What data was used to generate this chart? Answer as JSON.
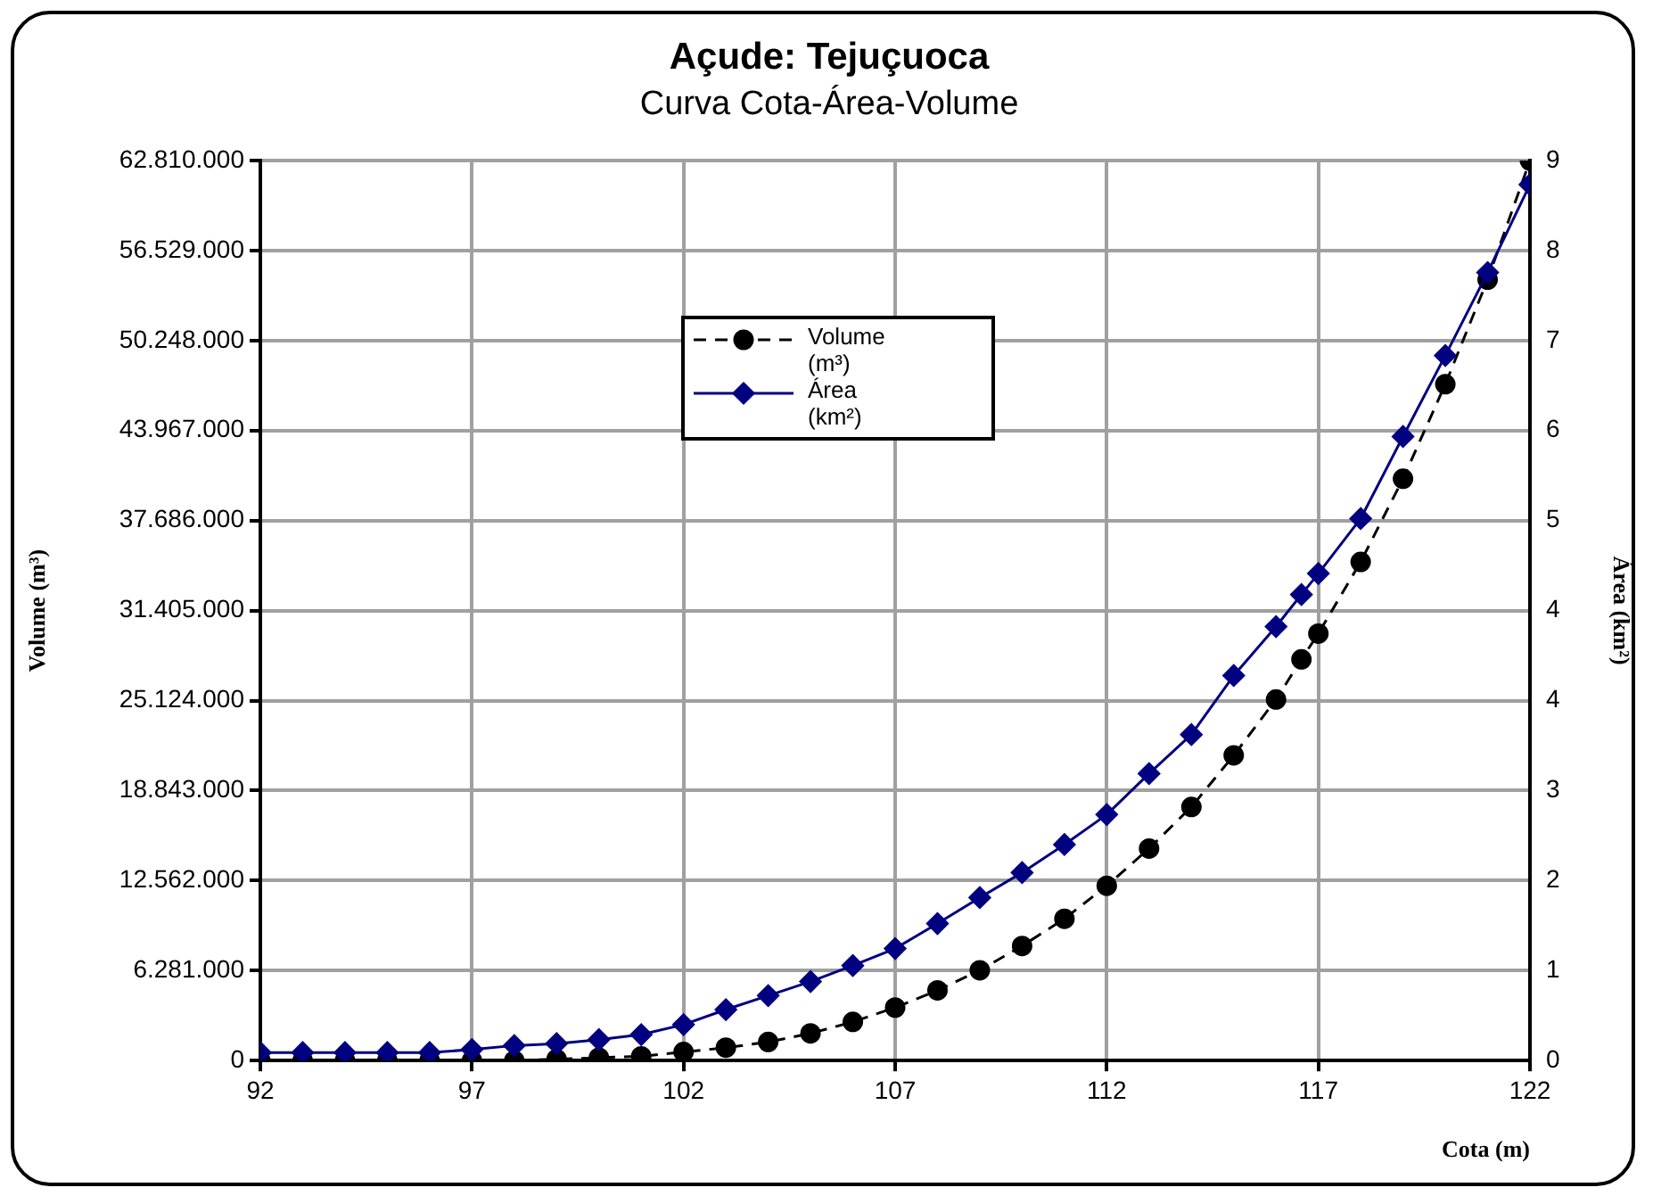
{
  "chart_data": {
    "type": "line",
    "title": "Açude: Tejuçuoca",
    "subtitle": "Curva Cota-Área-Volume",
    "xlabel": "Cota (m)",
    "ylabel": "Volume (m³)",
    "y2label": "Área (km²)",
    "x": [
      92,
      93,
      94,
      95,
      96,
      97,
      98,
      99,
      100,
      101,
      102,
      103,
      104,
      105,
      106,
      107,
      108,
      109,
      110,
      111,
      112,
      113,
      114,
      115,
      116,
      116.6,
      117,
      118,
      119,
      120,
      121,
      122
    ],
    "series": [
      {
        "name": "Volume (m³)",
        "color": "#000000",
        "marker": "circle",
        "line_style": "dashed",
        "values": [
          0,
          0,
          0,
          0,
          0,
          0,
          0,
          100000,
          200000,
          300000,
          600000,
          900000,
          1300000,
          1900000,
          2700000,
          3700000,
          4900000,
          6300000,
          8000000,
          9900000,
          12200000,
          14800000,
          17700000,
          21300000,
          25200000,
          28000000,
          29800000,
          34800000,
          40600000,
          47200000,
          54500000,
          62810000
        ]
      },
      {
        "name": "Área (km²)",
        "color": "#000080",
        "marker": "diamond",
        "line_style": "solid",
        "axis": "y2",
        "values": [
          0.08,
          0.08,
          0.08,
          0.08,
          0.08,
          0.11,
          0.15,
          0.17,
          0.21,
          0.26,
          0.36,
          0.51,
          0.65,
          0.79,
          0.95,
          1.12,
          1.37,
          1.63,
          1.88,
          2.16,
          2.46,
          2.87,
          3.26,
          3.85,
          4.34,
          4.66,
          4.87,
          5.42,
          6.24,
          7.05,
          7.88,
          8.76
        ]
      }
    ],
    "xlim": [
      92,
      122
    ],
    "xticks": [
      92,
      97,
      102,
      107,
      112,
      117,
      122
    ],
    "ylim": [
      0,
      62810000
    ],
    "yticks": [
      0,
      {
        "value": 6281000,
        "label": "6.281.000"
      },
      {
        "value": 12562000,
        "label": "12.562.000"
      },
      {
        "value": 18843000,
        "label": "18.843.000"
      },
      {
        "value": 25124000,
        "label": "25.124.000"
      },
      {
        "value": 31405000,
        "label": "31.405.000"
      },
      {
        "value": 37686000,
        "label": "37.686.000"
      },
      {
        "value": 43967000,
        "label": "43.967.000"
      },
      {
        "value": 50248000,
        "label": "50.248.000"
      },
      {
        "value": 56529000,
        "label": "56.529.000"
      },
      {
        "value": 62810000,
        "label": "62.810.000"
      }
    ],
    "y2lim": [
      0,
      9
    ],
    "y2ticks": [
      0,
      {
        "value": 0.9,
        "label": "1"
      },
      {
        "value": 1.8,
        "label": "2"
      },
      {
        "value": 2.7,
        "label": "3"
      },
      {
        "value": 3.6,
        "label": "4"
      },
      {
        "value": 4.5,
        "label": "4"
      },
      {
        "value": 5.4,
        "label": "5"
      },
      {
        "value": 6.3,
        "label": "6"
      },
      {
        "value": 7.2,
        "label": "7"
      },
      {
        "value": 8.1,
        "label": "8"
      },
      9
    ],
    "grid": true,
    "legend": "top"
  }
}
